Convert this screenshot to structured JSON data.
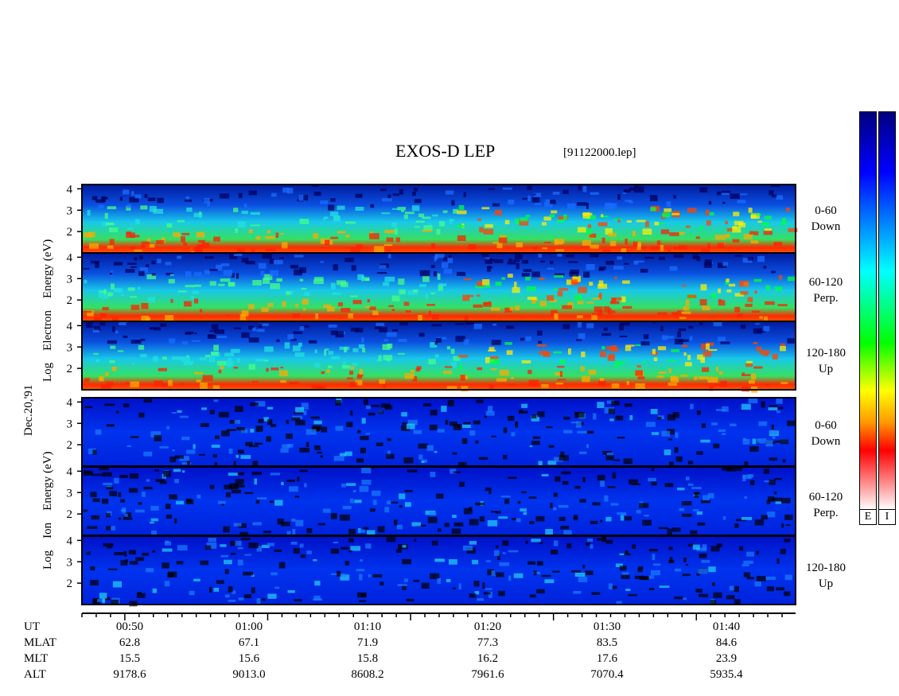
{
  "title": "EXOS-D LEP",
  "file_label": "[91122000.lep]",
  "date_label": "Dec.20,'91",
  "electron_axis_label": [
    "Log",
    "Electron",
    "Energy",
    "(eV)"
  ],
  "ion_axis_label": [
    "Log",
    "Ion",
    "Energy",
    "(eV)"
  ],
  "panels": [
    {
      "species": "Electron",
      "label_line1": "0-60",
      "label_line2": "Down"
    },
    {
      "species": "Electron",
      "label_line1": "60-120",
      "label_line2": "Perp."
    },
    {
      "species": "Electron",
      "label_line1": "120-180",
      "label_line2": "Up"
    },
    {
      "species": "Ion",
      "label_line1": "0-60",
      "label_line2": "Down"
    },
    {
      "species": "Ion",
      "label_line1": "60-120",
      "label_line2": "Perp."
    },
    {
      "species": "Ion",
      "label_line1": "120-180",
      "label_line2": "Up"
    }
  ],
  "colorbar": {
    "labels": [
      "E",
      "I"
    ]
  },
  "orbit_table": {
    "row_labels": [
      "UT",
      "MLAT",
      "MLT",
      "ALT"
    ],
    "columns": [
      {
        "UT": "00:50",
        "MLAT": "62.8",
        "MLT": "15.5",
        "ALT": "9178.6"
      },
      {
        "UT": "01:00",
        "MLAT": "67.1",
        "MLT": "15.6",
        "ALT": "9013.0"
      },
      {
        "UT": "01:10",
        "MLAT": "71.9",
        "MLT": "15.8",
        "ALT": "8608.2"
      },
      {
        "UT": "01:20",
        "MLAT": "77.3",
        "MLT": "16.2",
        "ALT": "7961.6"
      },
      {
        "UT": "01:30",
        "MLAT": "83.5",
        "MLT": "17.6",
        "ALT": "7070.4"
      },
      {
        "UT": "01:40",
        "MLAT": "84.6",
        "MLT": "23.9",
        "ALT": "5935.4"
      }
    ]
  },
  "chart_data": {
    "type": "heatmap",
    "x_axis": "UT",
    "x_ticks": [
      "00:50",
      "01:00",
      "01:10",
      "01:20",
      "01:30",
      "01:40"
    ],
    "y_ticks": [
      "2",
      "3",
      "4"
    ],
    "ylim": [
      1,
      4.2
    ],
    "panels": 6,
    "colormap": [
      "#ffffff",
      "#ff0000",
      "#ff9900",
      "#ffff00",
      "#00ff00",
      "#00ffff",
      "#0000ff",
      "#000080"
    ]
  }
}
